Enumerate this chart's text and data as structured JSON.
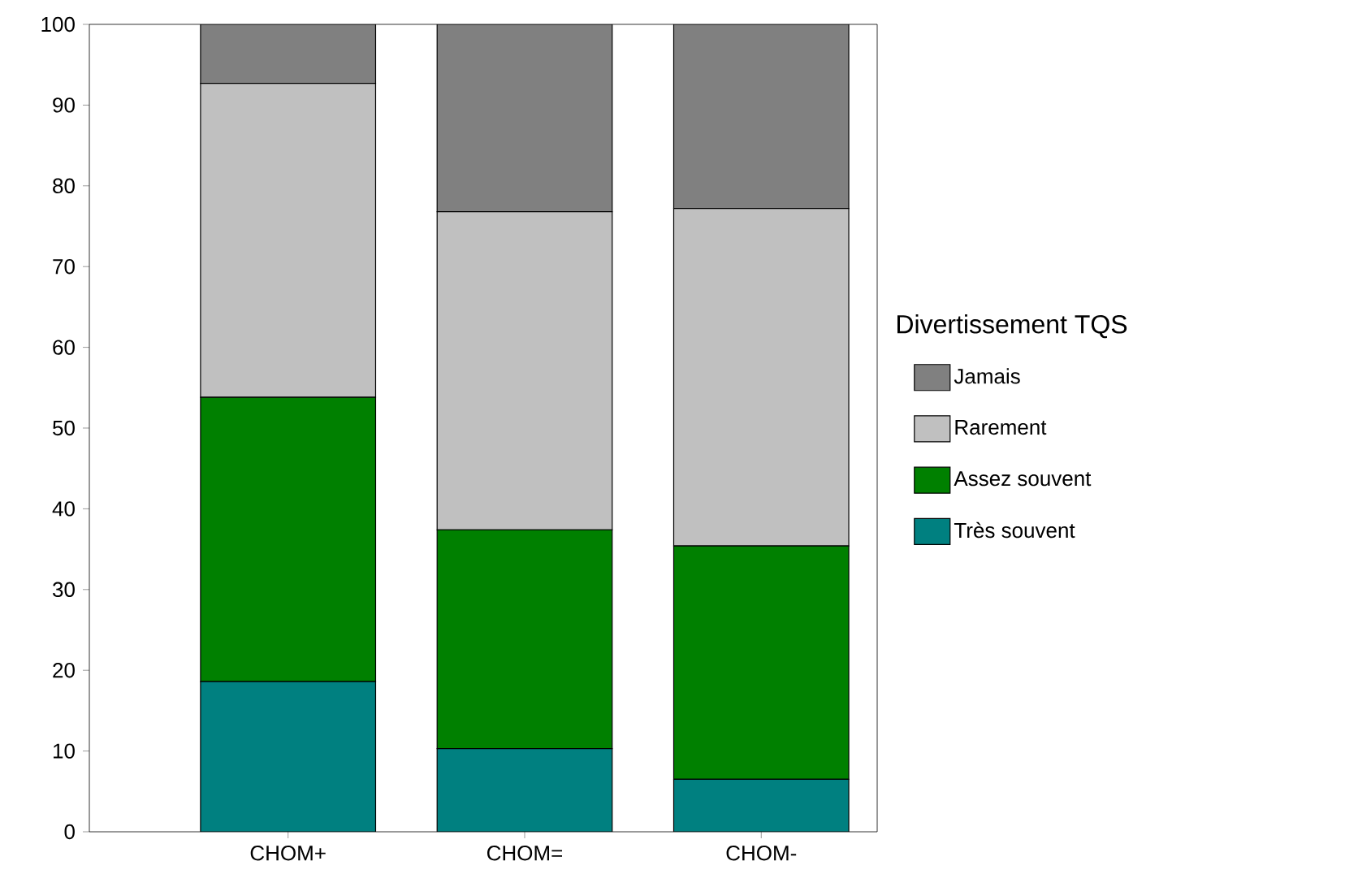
{
  "chart_data": {
    "type": "bar",
    "stacked": true,
    "categories": [
      "CHOM+",
      "CHOM=",
      "CHOM-"
    ],
    "series": [
      {
        "name": "Très souvent",
        "color": "#008080",
        "values": [
          18.6,
          10.3,
          6.5
        ]
      },
      {
        "name": "Assez souvent",
        "color": "#008000",
        "values": [
          35.2,
          27.1,
          28.9
        ]
      },
      {
        "name": "Rarement",
        "color": "#c0c0c0",
        "values": [
          38.9,
          39.4,
          41.8
        ]
      },
      {
        "name": "Jamais",
        "color": "#808080",
        "values": [
          7.3,
          23.2,
          22.8
        ]
      }
    ],
    "legend_title": "Divertissement TQS",
    "legend": "right",
    "ylim": [
      0,
      100
    ],
    "yticks": [
      0,
      10,
      20,
      30,
      40,
      50,
      60,
      70,
      80,
      90,
      100
    ],
    "grid": false
  }
}
